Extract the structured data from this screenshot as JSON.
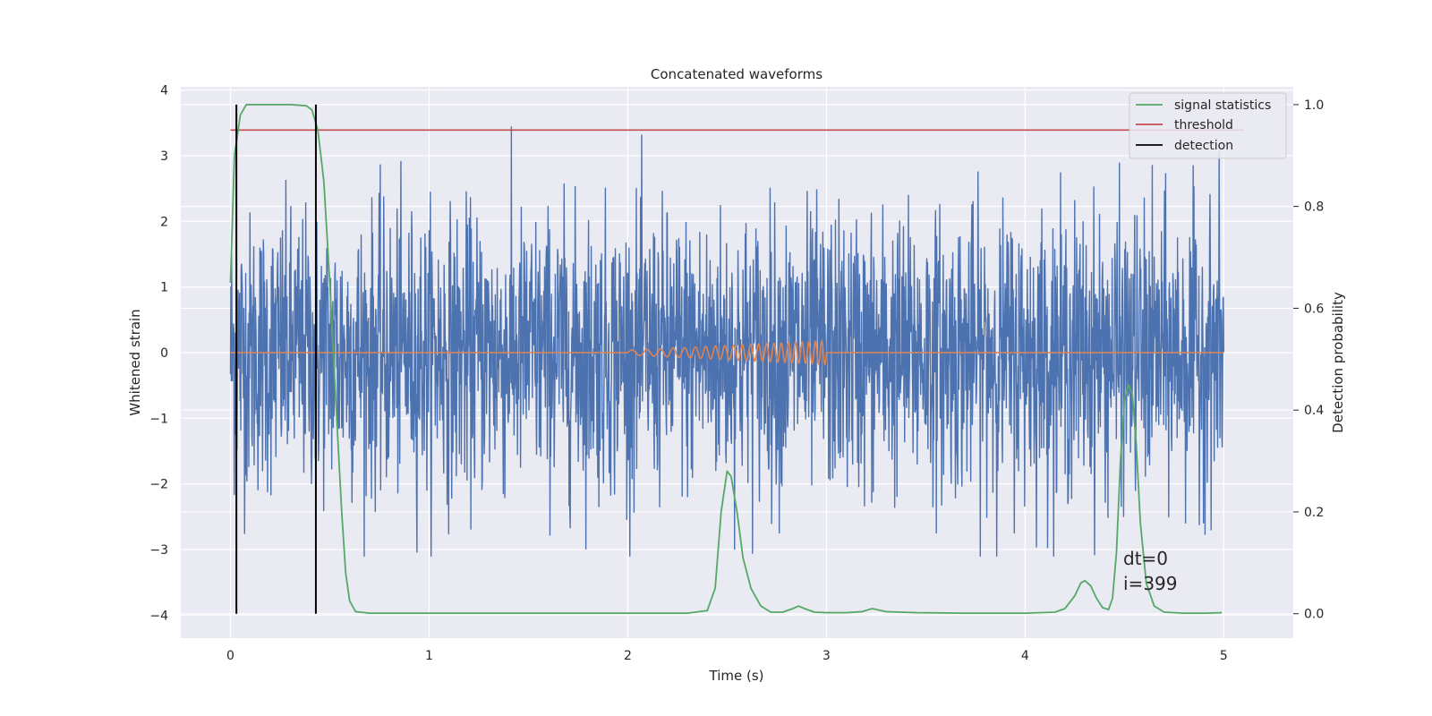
{
  "chart_data": {
    "type": "line",
    "title": "Concatenated waveforms",
    "xlabel": "Time (s)",
    "ylabel": "Whitened strain",
    "ylabel_right": "Detection probability",
    "xlim": [
      -0.25,
      5.35
    ],
    "ylim": [
      -4.35,
      4.05
    ],
    "ylim_right": [
      -0.048,
      1.035
    ],
    "xticks": [
      0,
      1,
      2,
      3,
      4,
      5
    ],
    "yticks": [
      -4,
      -3,
      -2,
      -1,
      0,
      1,
      2,
      3,
      4
    ],
    "yticks_right": [
      0.0,
      0.2,
      0.4,
      0.6,
      0.8,
      1.0
    ],
    "xtick_labels": [
      "0",
      "1",
      "2",
      "3",
      "4",
      "5"
    ],
    "ytick_labels": [
      "−4",
      "−3",
      "−2",
      "−1",
      "0",
      "1",
      "2",
      "3",
      "4"
    ],
    "ytick_right_labels": [
      "0.0",
      "0.2",
      "0.4",
      "0.6",
      "0.8",
      "1.0"
    ],
    "grid": true,
    "legend_position": "top-right",
    "legend": [
      "signal statistics",
      "threshold",
      "detection"
    ],
    "colors": {
      "noise": "#4c72b0",
      "waveform": "#dd8452",
      "signal_statistics": "#55a868",
      "threshold": "#c44e52",
      "detection": "#000000",
      "background": "#eaeaf2",
      "grid": "#ffffff"
    },
    "noise": {
      "x_range": [
        0,
        5
      ],
      "range": [
        -3.1,
        3.6
      ],
      "description_level": "dense noise band"
    },
    "injected_waveform": {
      "x_range": [
        2.0,
        3.0
      ],
      "amplitude_end": 0.18
    },
    "threshold": {
      "x_range": [
        0,
        5.1
      ],
      "value": 0.95
    },
    "detections": [
      0.03,
      0.43
    ],
    "signal_statistics": {
      "x": [
        0.0,
        0.02,
        0.05,
        0.08,
        0.12,
        0.2,
        0.3,
        0.38,
        0.41,
        0.44,
        0.47,
        0.5,
        0.53,
        0.56,
        0.58,
        0.6,
        0.63,
        0.7,
        1.0,
        1.5,
        2.0,
        2.3,
        2.4,
        2.44,
        2.47,
        2.5,
        2.52,
        2.55,
        2.58,
        2.62,
        2.67,
        2.72,
        2.78,
        2.83,
        2.86,
        2.89,
        2.94,
        3.0,
        3.1,
        3.18,
        3.23,
        3.3,
        3.45,
        3.7,
        4.0,
        4.15,
        4.2,
        4.25,
        4.28,
        4.3,
        4.33,
        4.36,
        4.39,
        4.42,
        4.44,
        4.46,
        4.48,
        4.5,
        4.52,
        4.54,
        4.56,
        4.58,
        4.61,
        4.65,
        4.7,
        4.8,
        4.9,
        4.99
      ],
      "y": [
        0.65,
        0.9,
        0.98,
        1.0,
        1.0,
        1.0,
        1.0,
        0.998,
        0.99,
        0.95,
        0.85,
        0.65,
        0.42,
        0.2,
        0.08,
        0.025,
        0.004,
        0.001,
        0.001,
        0.001,
        0.001,
        0.001,
        0.006,
        0.05,
        0.2,
        0.28,
        0.27,
        0.2,
        0.11,
        0.05,
        0.015,
        0.003,
        0.003,
        0.01,
        0.015,
        0.01,
        0.003,
        0.002,
        0.002,
        0.004,
        0.01,
        0.004,
        0.002,
        0.001,
        0.001,
        0.003,
        0.01,
        0.035,
        0.06,
        0.065,
        0.055,
        0.03,
        0.012,
        0.008,
        0.03,
        0.12,
        0.3,
        0.42,
        0.45,
        0.43,
        0.33,
        0.18,
        0.06,
        0.015,
        0.003,
        0.001,
        0.001,
        0.002
      ]
    },
    "annotations": [
      "dt=0",
      "i=399"
    ]
  }
}
